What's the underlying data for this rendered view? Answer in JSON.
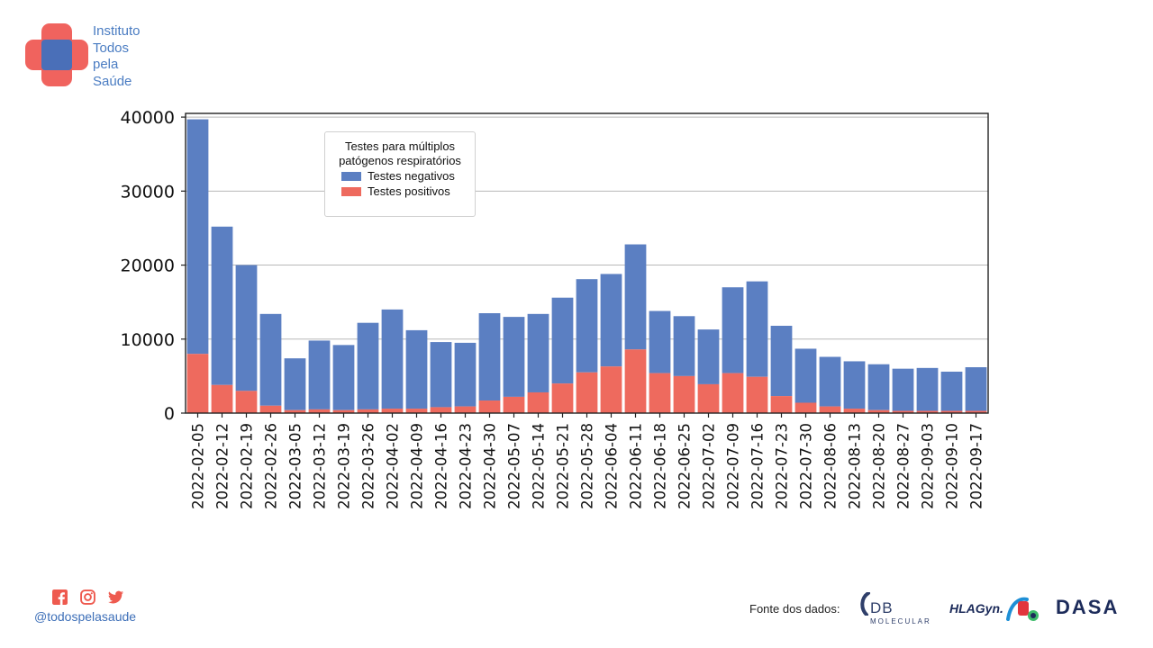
{
  "logo": {
    "lines": [
      "Instituto",
      "Todos",
      "pela",
      "Saúde"
    ],
    "icon": "cross-logo-icon",
    "colors": {
      "red": "#ef5b55",
      "blue": "#4a6fb8"
    }
  },
  "footer": {
    "handle": "@todospelasaude",
    "social_icons": [
      "facebook-icon",
      "instagram-icon",
      "twitter-icon"
    ],
    "source_label": "Fonte dos dados:",
    "sources": {
      "db_name": "DB",
      "db_sub": "MOLECULAR",
      "hla": "HLAGyn.",
      "dasa": "DASA"
    }
  },
  "chart_data": {
    "type": "bar",
    "stacked": true,
    "legend": {
      "title": "Testes para múltiplos\npatógenos respiratórios",
      "placement": "top-left"
    },
    "categories": [
      "2022-02-05",
      "2022-02-12",
      "2022-02-19",
      "2022-02-26",
      "2022-03-05",
      "2022-03-12",
      "2022-03-19",
      "2022-03-26",
      "2022-04-02",
      "2022-04-09",
      "2022-04-16",
      "2022-04-23",
      "2022-04-30",
      "2022-05-07",
      "2022-05-14",
      "2022-05-21",
      "2022-05-28",
      "2022-06-04",
      "2022-06-11",
      "2022-06-18",
      "2022-06-25",
      "2022-07-02",
      "2022-07-09",
      "2022-07-16",
      "2022-07-23",
      "2022-07-30",
      "2022-08-06",
      "2022-08-13",
      "2022-08-20",
      "2022-08-27",
      "2022-09-03",
      "2022-09-10",
      "2022-09-17"
    ],
    "series": [
      {
        "name": "Testes positivos",
        "color": "#ee6a5e",
        "values": [
          8000,
          3800,
          3000,
          1000,
          400,
          500,
          400,
          500,
          600,
          600,
          800,
          900,
          1700,
          2200,
          2800,
          4000,
          5500,
          6300,
          8600,
          5400,
          5000,
          3900,
          5400,
          4900,
          2300,
          1400,
          900,
          600,
          400,
          300,
          300,
          300,
          300
        ]
      },
      {
        "name": "Testes negativos",
        "color": "#5b7fc2",
        "values": [
          31700,
          21400,
          17000,
          12400,
          7000,
          9300,
          8800,
          11700,
          13400,
          10600,
          8800,
          8600,
          11800,
          10800,
          10600,
          11600,
          12600,
          12500,
          14200,
          8400,
          8100,
          7400,
          11600,
          12900,
          9500,
          7300,
          6700,
          6400,
          6200,
          5700,
          5800,
          5300,
          5900
        ]
      }
    ],
    "yticks": [
      0,
      10000,
      20000,
      30000,
      40000
    ],
    "ylim": [
      0,
      40500
    ],
    "grid": "horizontal",
    "xlabel": "",
    "ylabel": "",
    "title": ""
  }
}
